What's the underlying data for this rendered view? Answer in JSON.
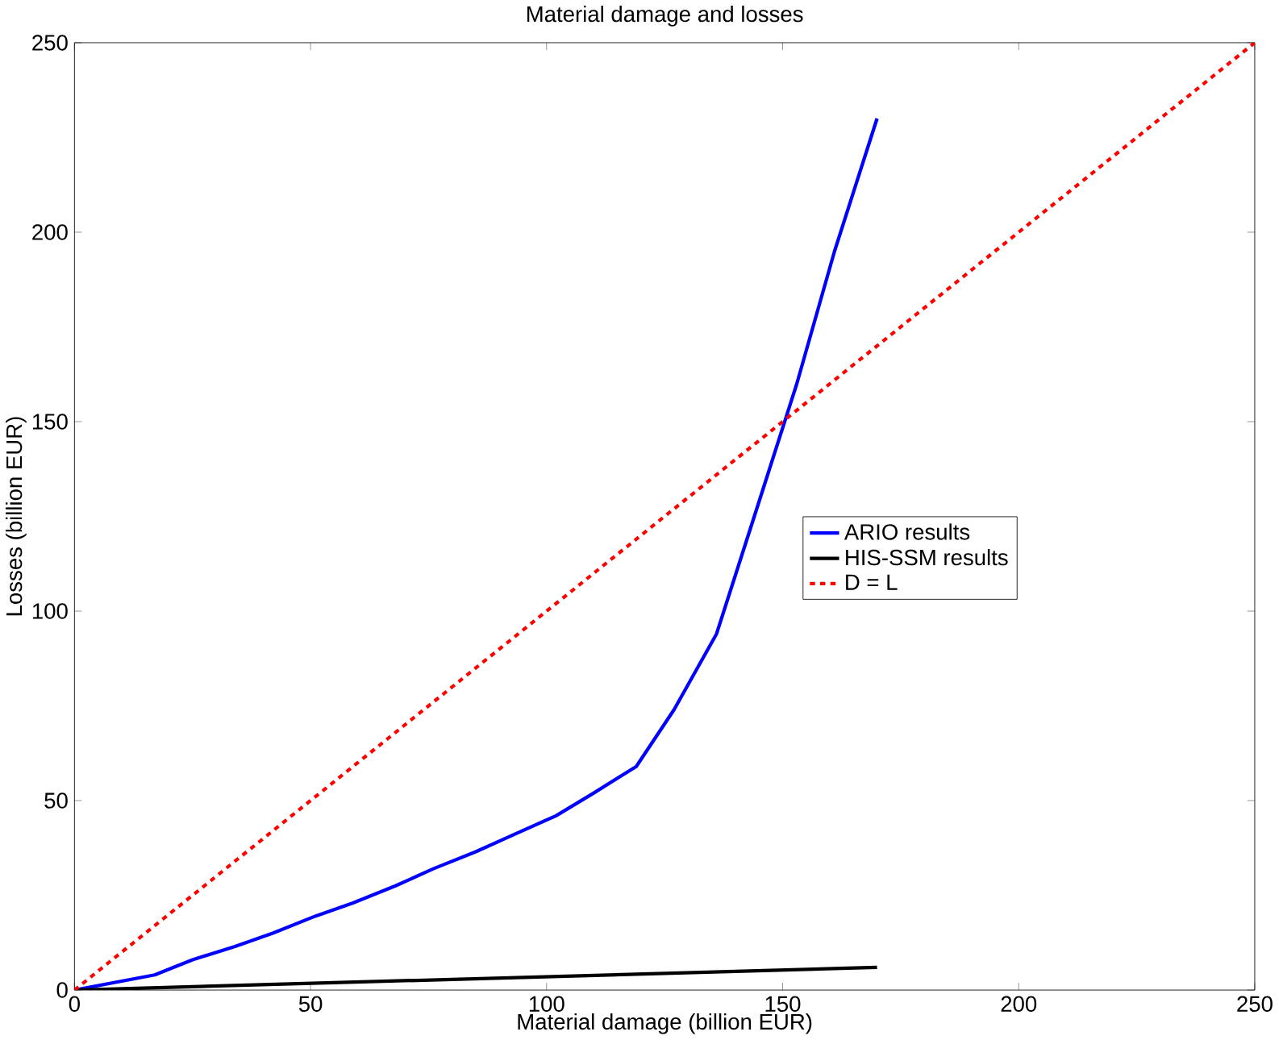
{
  "chart_data": {
    "type": "line",
    "title": "Material damage and losses",
    "xlabel": "Material damage (billion EUR)",
    "ylabel": "Losses (billion EUR)",
    "xlim": [
      0,
      250
    ],
    "ylim": [
      0,
      250
    ],
    "xticks": [
      0,
      50,
      100,
      150,
      200,
      250
    ],
    "yticks": [
      0,
      50,
      100,
      150,
      200,
      250
    ],
    "grid": false,
    "legend": "right",
    "series": [
      {
        "name": "ARIO results",
        "color": "#0000ff",
        "x": [
          0,
          17,
          25,
          34,
          42,
          51,
          59,
          68,
          76,
          85,
          93,
          102,
          110,
          119,
          127,
          136,
          144,
          153,
          161,
          170
        ],
        "values": [
          0,
          4,
          8,
          11.5,
          15,
          19.5,
          23,
          27.5,
          32,
          36.5,
          41,
          46,
          52,
          59,
          74,
          94,
          125,
          160,
          195,
          230
        ],
        "line_style": "solid"
      },
      {
        "name": "HIS-SSM results",
        "color": "#000000",
        "x": [
          0,
          170
        ],
        "values": [
          0,
          6
        ],
        "line_style": "solid"
      },
      {
        "name": "D = L",
        "color": "#ff0000",
        "x": [
          0,
          250
        ],
        "values": [
          0,
          250
        ],
        "line_style": "dashed"
      }
    ]
  }
}
